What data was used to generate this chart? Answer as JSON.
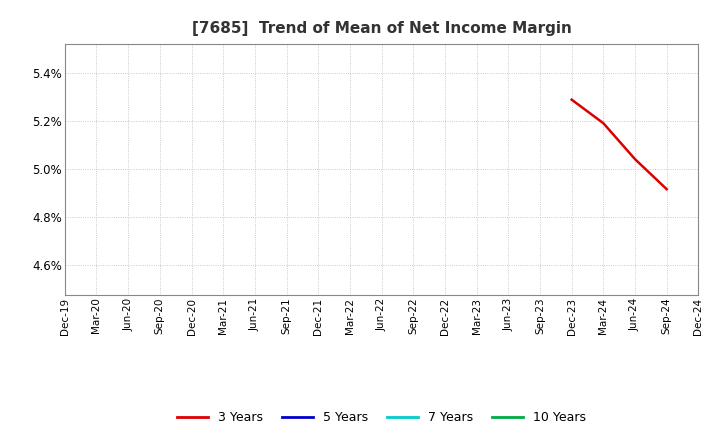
{
  "title": "[7685]  Trend of Mean of Net Income Margin",
  "title_fontsize": 11,
  "ylim": [
    0.04475,
    0.0552
  ],
  "yticks": [
    0.046,
    0.048,
    0.05,
    0.052,
    0.054
  ],
  "ytick_labels": [
    "4.6%",
    "4.8%",
    "5.0%",
    "5.2%",
    "5.4%"
  ],
  "background_color": "#ffffff",
  "plot_background": "#ffffff",
  "grid_color": "#bbbbbb",
  "xtick_dates": [
    "Dec-19",
    "Mar-20",
    "Jun-20",
    "Sep-20",
    "Dec-20",
    "Mar-21",
    "Jun-21",
    "Sep-21",
    "Dec-21",
    "Mar-22",
    "Jun-22",
    "Sep-22",
    "Dec-22",
    "Mar-23",
    "Jun-23",
    "Sep-23",
    "Dec-23",
    "Mar-24",
    "Jun-24",
    "Sep-24",
    "Dec-24"
  ],
  "series": [
    {
      "label": "3 Years",
      "color": "#dd0000",
      "linewidth": 1.8,
      "data_dates": [
        "Dec-23",
        "Mar-24",
        "Jun-24",
        "Sep-24"
      ],
      "data_values": [
        0.05288,
        0.0519,
        0.0504,
        0.04915
      ]
    },
    {
      "label": "5 Years",
      "color": "#0000cc",
      "linewidth": 1.8,
      "data_dates": [],
      "data_values": []
    },
    {
      "label": "7 Years",
      "color": "#00cccc",
      "linewidth": 1.8,
      "data_dates": [],
      "data_values": []
    },
    {
      "label": "10 Years",
      "color": "#00aa44",
      "linewidth": 1.8,
      "data_dates": [],
      "data_values": []
    }
  ]
}
